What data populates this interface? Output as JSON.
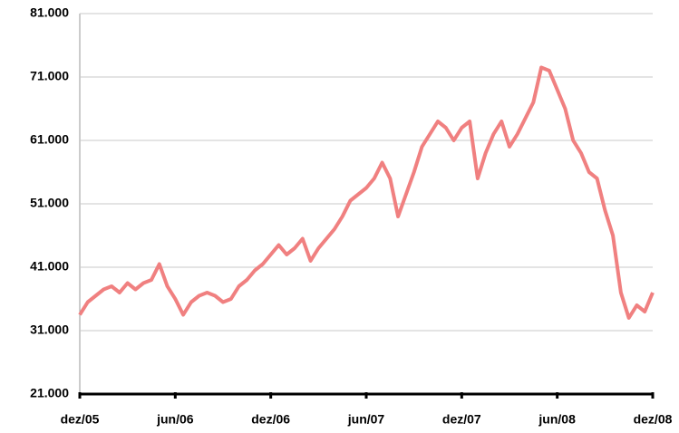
{
  "chart_data": {
    "type": "line",
    "categories": [
      "dez/05",
      null,
      null,
      null,
      null,
      null,
      null,
      null,
      null,
      null,
      null,
      null,
      "jun/06",
      null,
      null,
      null,
      null,
      null,
      null,
      null,
      null,
      null,
      null,
      null,
      "dez/06",
      null,
      null,
      null,
      null,
      null,
      null,
      null,
      null,
      null,
      null,
      null,
      "jun/07",
      null,
      null,
      null,
      null,
      null,
      null,
      null,
      null,
      null,
      null,
      null,
      "dez/07",
      null,
      null,
      null,
      null,
      null,
      null,
      null,
      null,
      null,
      null,
      null,
      "jun/08",
      null,
      null,
      null,
      null,
      null,
      null,
      null,
      null,
      null,
      null,
      null,
      "dez/08"
    ],
    "values": [
      33500,
      35500,
      36500,
      37500,
      38000,
      37000,
      38500,
      37500,
      38500,
      39000,
      41500,
      38000,
      36000,
      33500,
      35500,
      36500,
      37000,
      36500,
      35500,
      36000,
      38000,
      39000,
      40500,
      41500,
      43000,
      44500,
      43000,
      44000,
      45500,
      42000,
      44000,
      45500,
      47000,
      49000,
      51500,
      52500,
      53500,
      55000,
      57500,
      55000,
      49000,
      52500,
      56000,
      60000,
      62000,
      64000,
      63000,
      61000,
      63000,
      64000,
      55000,
      59000,
      62000,
      64000,
      60000,
      62000,
      64500,
      67000,
      72500,
      72000,
      69000,
      66000,
      61000,
      59000,
      56000,
      55000,
      50000,
      46000,
      37000,
      33000,
      35000,
      34000,
      37000
    ],
    "color": "#f08080",
    "ylim": [
      21000,
      81000
    ],
    "yticks": [
      {
        "value": 21000,
        "label": "21.000"
      },
      {
        "value": 31000,
        "label": "31.000"
      },
      {
        "value": 41000,
        "label": "41.000"
      },
      {
        "value": 51000,
        "label": "51.000"
      },
      {
        "value": 61000,
        "label": "61.000"
      },
      {
        "value": 71000,
        "label": "71.000"
      },
      {
        "value": 81000,
        "label": "81.000"
      }
    ],
    "grid": true
  }
}
